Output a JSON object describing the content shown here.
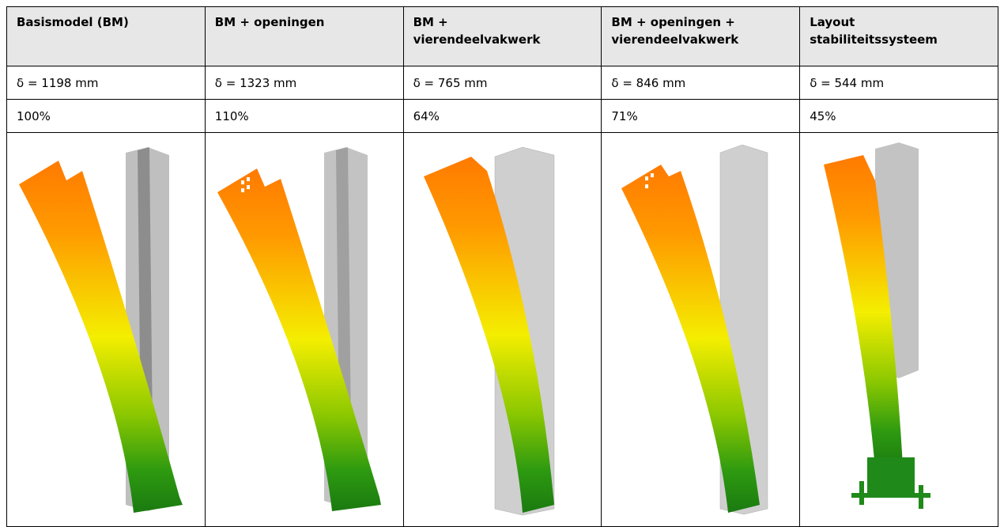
{
  "table": {
    "header": [
      "Basismodel (BM)",
      "BM + openingen",
      "BM + vierendeelvakwerk",
      "BM + openingen + vierendeelvakwerk",
      "Layout stabiliteitssysteem"
    ],
    "rows": [
      [
        "δ = 1198 mm",
        "δ = 1323 mm",
        "δ = 765 mm",
        "δ = 846 mm",
        "δ = 544 mm"
      ],
      [
        "100%",
        "110%",
        "64%",
        "71%",
        "45%"
      ]
    ]
  }
}
